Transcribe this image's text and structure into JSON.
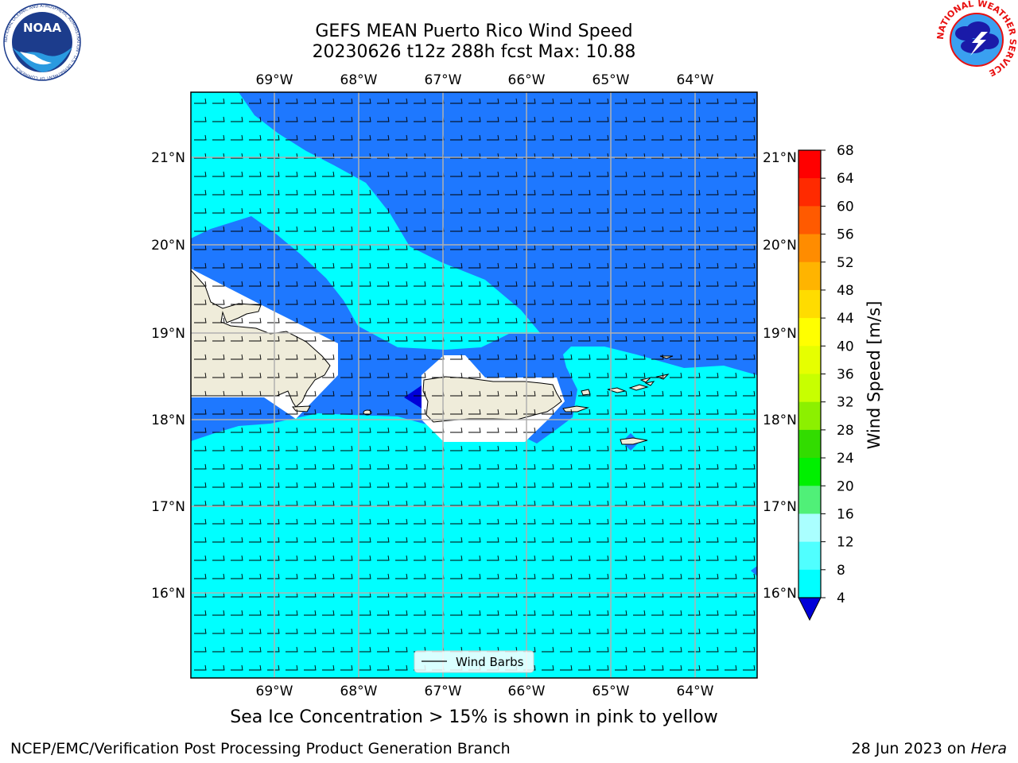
{
  "title": {
    "line1": "GEFS MEAN Puerto Rico Wind Speed",
    "line2": "20230626 t12z 288h fcst   Max: 10.88"
  },
  "map": {
    "lon_labels": [
      "69°W",
      "68°W",
      "67°W",
      "66°W",
      "65°W",
      "64°W"
    ],
    "lat_labels": [
      "21°N",
      "20°N",
      "19°N",
      "18°N",
      "17°N",
      "16°N"
    ],
    "legend_label": "Wind Barbs",
    "colors": {
      "ocean_low": "#1e78ff",
      "ocean_mid": "#00ffff",
      "land": "#efecda",
      "dark_blue": "#0000d8",
      "grid": "#b0b0b0"
    }
  },
  "colorbar": {
    "label": "Wind Speed [m/s]",
    "ticks": [
      "68",
      "64",
      "60",
      "56",
      "52",
      "48",
      "44",
      "40",
      "36",
      "32",
      "28",
      "24",
      "20",
      "16",
      "12",
      "8",
      "4"
    ],
    "colors": [
      "#ff0000",
      "#ff2a00",
      "#ff5a00",
      "#ff8c00",
      "#ffb400",
      "#ffdc00",
      "#ffff00",
      "#e6ff00",
      "#c8ff00",
      "#8cf000",
      "#32dc00",
      "#00f000",
      "#50f078",
      "#aaffff",
      "#50ffff",
      "#00ffff",
      "#1e78ff"
    ],
    "under_color": "#0000d8"
  },
  "subtitle": "Sea Ice Concentration > 15% is shown in pink to yellow",
  "footer": {
    "left": "NCEP/EMC/Verification Post Processing Product Generation Branch",
    "right_date": "28 Jun 2023 on ",
    "right_host": "Hera"
  },
  "logos": {
    "noaa": "NOAA",
    "nws": "NATIONAL WEATHER SERVICE",
    "noaa_ring": "NATIONAL OCEANIC AND ATMOSPHERIC ADMINISTRATION · U.S. DEPARTMENT OF COMMERCE"
  }
}
